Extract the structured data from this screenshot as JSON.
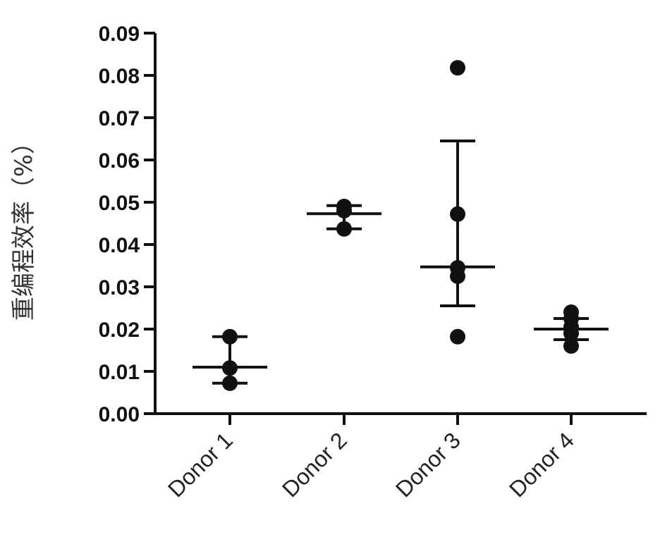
{
  "chart_data": {
    "type": "scatter",
    "ylabel": "重编程效率（%）",
    "xlabel": "",
    "ylim": [
      0,
      0.09
    ],
    "yticks": [
      "0.00",
      "0.01",
      "0.02",
      "0.03",
      "0.04",
      "0.05",
      "0.06",
      "0.07",
      "0.08",
      "0.09"
    ],
    "categories": [
      "Donor 1",
      "Donor 2",
      "Donor 3",
      "Donor 4"
    ],
    "groups": [
      {
        "category": "Donor 1",
        "points": [
          0.0182,
          0.0108,
          0.0072
        ],
        "mean": 0.011,
        "error": [
          0.0072,
          0.0182
        ]
      },
      {
        "category": "Donor 2",
        "points": [
          0.049,
          0.048,
          0.0437
        ],
        "mean": 0.0473,
        "error": [
          0.0437,
          0.0492
        ]
      },
      {
        "category": "Donor 3",
        "points": [
          0.0818,
          0.0472,
          0.0345,
          0.0325,
          0.0182
        ],
        "mean": 0.0347,
        "error": [
          0.0255,
          0.0645
        ]
      },
      {
        "category": "Donor 4",
        "points": [
          0.024,
          0.0225,
          0.0205,
          0.019,
          0.016
        ],
        "mean": 0.02,
        "error": [
          0.0175,
          0.0225
        ]
      }
    ],
    "grid": false,
    "marker_color": "#111111"
  }
}
